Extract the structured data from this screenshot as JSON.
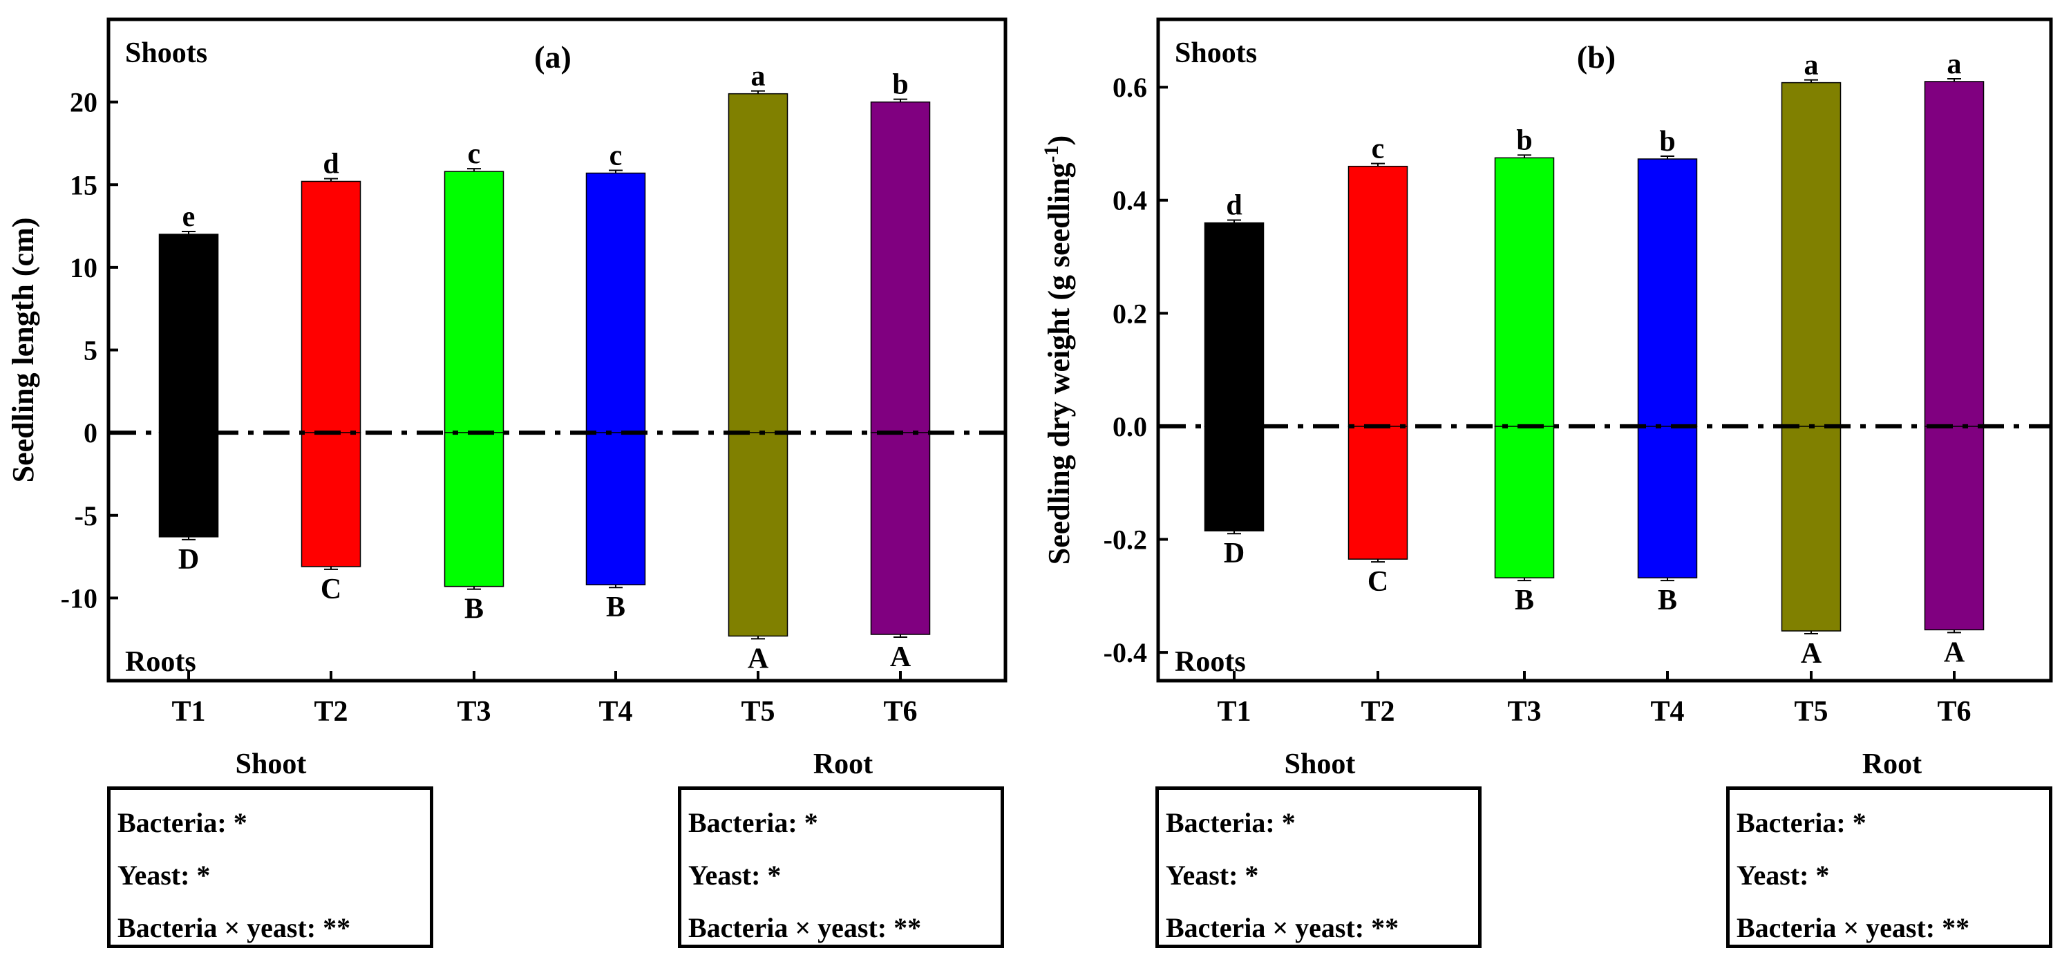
{
  "chart_data": [
    {
      "type": "bar",
      "panel_label": "(a)",
      "ylabel": "Seedling length (cm)",
      "ylim": [
        -15,
        25
      ],
      "yticks": [
        "20",
        "15",
        "10",
        "5",
        "0",
        "-5",
        "-10"
      ],
      "ytick_values": [
        20,
        15,
        10,
        5,
        0,
        -5,
        -10
      ],
      "categories": [
        "T1",
        "T2",
        "T3",
        "T4",
        "T5",
        "T6"
      ],
      "top_label": "Shoots",
      "bottom_label": "Roots",
      "series": [
        {
          "name": "Shoots",
          "values": [
            12.0,
            15.2,
            15.8,
            15.7,
            20.5,
            20.0
          ],
          "letters": [
            "e",
            "d",
            "c",
            "c",
            "a",
            "b"
          ]
        },
        {
          "name": "Roots",
          "values": [
            -6.3,
            -8.1,
            -9.3,
            -9.2,
            -12.3,
            -12.2
          ],
          "letters": [
            "D",
            "C",
            "B",
            "B",
            "A",
            "A"
          ]
        }
      ],
      "colors": [
        "#000000",
        "#ff0000",
        "#00ff00",
        "#0000ff",
        "#808000",
        "#800080"
      ]
    },
    {
      "type": "bar",
      "panel_label": "(b)",
      "ylabel": "Seedling dry weight (g seedling",
      "ylabel_sup": "-1",
      "ylabel_end": ")",
      "ylim": [
        -0.45,
        0.72
      ],
      "yticks": [
        "0.6",
        "0.4",
        "0.2",
        "0.0",
        "-0.2",
        "-0.4"
      ],
      "ytick_values": [
        0.6,
        0.4,
        0.2,
        0.0,
        -0.2,
        -0.4
      ],
      "categories": [
        "T1",
        "T2",
        "T3",
        "T4",
        "T5",
        "T6"
      ],
      "top_label": "Shoots",
      "bottom_label": "Roots",
      "series": [
        {
          "name": "Shoots",
          "values": [
            0.36,
            0.46,
            0.475,
            0.473,
            0.608,
            0.61
          ],
          "letters": [
            "d",
            "c",
            "b",
            "b",
            "a",
            "a"
          ]
        },
        {
          "name": "Roots",
          "values": [
            -0.185,
            -0.235,
            -0.268,
            -0.268,
            -0.362,
            -0.36
          ],
          "letters": [
            "D",
            "C",
            "B",
            "B",
            "A",
            "A"
          ]
        }
      ],
      "colors": [
        "#000000",
        "#ff0000",
        "#00ff00",
        "#0000ff",
        "#808000",
        "#800080"
      ]
    }
  ],
  "stats": {
    "a_shoot": {
      "title": "Shoot",
      "lines": [
        "Bacteria: *",
        "Yeast: *",
        "Bacteria × yeast: **"
      ]
    },
    "a_root": {
      "title": "Root",
      "lines": [
        "Bacteria: *",
        "Yeast: *",
        "Bacteria × yeast: **"
      ]
    },
    "b_shoot": {
      "title": "Shoot",
      "lines": [
        "Bacteria: *",
        "Yeast: *",
        "Bacteria × yeast: **"
      ]
    },
    "b_root": {
      "title": "Root",
      "lines": [
        "Bacteria: *",
        "Yeast: *",
        "Bacteria × yeast: **"
      ]
    }
  }
}
